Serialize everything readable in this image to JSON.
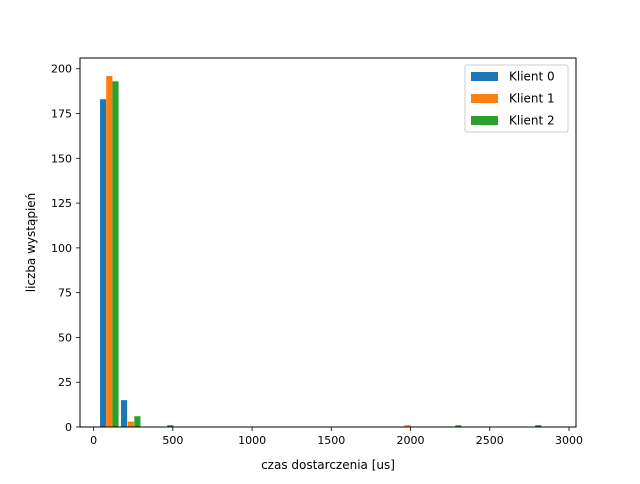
{
  "chart_data": {
    "type": "bar",
    "xlabel": "czas dostarczenia [us]",
    "ylabel": "liczba wystąpień",
    "xlim": [
      -86,
      3044
    ],
    "ylim": [
      0,
      206
    ],
    "xticks": [
      0,
      500,
      1000,
      1500,
      2000,
      2500,
      3000
    ],
    "yticks": [
      0,
      25,
      50,
      75,
      100,
      125,
      150,
      175,
      200
    ],
    "grid": false,
    "legend_position": "top-right",
    "series": [
      {
        "name": "Klient 0",
        "color": "#1f77b4",
        "bars": [
          {
            "x": 60,
            "value": 183
          },
          {
            "x": 192,
            "value": 15
          },
          {
            "x": 484,
            "value": 1
          },
          {
            "x": 2806,
            "value": 1
          }
        ]
      },
      {
        "name": "Klient 1",
        "color": "#ff7f0e",
        "bars": [
          {
            "x": 99,
            "value": 196
          },
          {
            "x": 235,
            "value": 3
          },
          {
            "x": 1981,
            "value": 1
          }
        ]
      },
      {
        "name": "Klient 2",
        "color": "#2ca02c",
        "bars": [
          {
            "x": 138,
            "value": 193
          },
          {
            "x": 276,
            "value": 6
          },
          {
            "x": 2302,
            "value": 1
          }
        ]
      }
    ]
  }
}
